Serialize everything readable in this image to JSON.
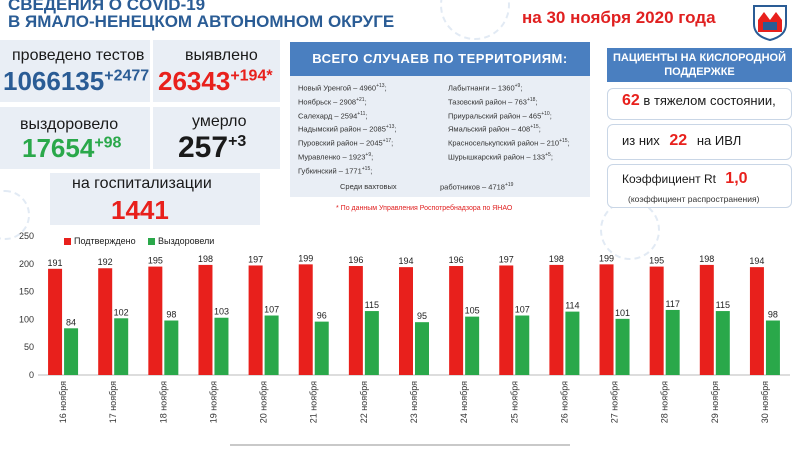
{
  "header": {
    "title_line1": "СВЕДЕНИЯ О COVID-19",
    "title_line2": "В ЯМАЛО-НЕНЕЦКОМ АВТОНОМНОМ ОКРУГЕ",
    "date": "на 30 ноября 2020 года"
  },
  "stats": {
    "tests_label": "проведено тестов",
    "tests_value": "1066135",
    "tests_delta": "+2477",
    "detected_label": "выявлено",
    "detected_value": "26343",
    "detected_delta": "+194*",
    "recovered_label": "выздоровело",
    "recovered_value": "17654",
    "recovered_delta": "+98",
    "died_label": "умерло",
    "died_value": "257",
    "died_delta": "+3",
    "hospital_label": "на госпитализации",
    "hospital_value": "1441"
  },
  "territories": {
    "title": "ВСЕГО СЛУЧАЕВ ПО ТЕРРИТОРИЯМ:",
    "left": [
      {
        "name": "Новый Уренгой – 4960",
        "delta": "+13"
      },
      {
        "name": "Ноябрьск – 2908",
        "delta": "+21"
      },
      {
        "name": "Салехард – 2594",
        "delta": "+11"
      },
      {
        "name": "Надымский район – 2085",
        "delta": "+13"
      },
      {
        "name": "Пуровский район – 2045",
        "delta": "+17"
      },
      {
        "name": "Муравленко – 1923",
        "delta": "+9"
      },
      {
        "name": "Губкинский – 1771",
        "delta": "+15"
      }
    ],
    "right": [
      {
        "name": "Лабытнанги – 1360",
        "delta": "+9"
      },
      {
        "name": "Тазовский район – 763",
        "delta": "+18"
      },
      {
        "name": "Приуральский район – 465",
        "delta": "+10"
      },
      {
        "name": "Ямальский район – 408",
        "delta": "+15"
      },
      {
        "name": "Красноселькупский район – 210",
        "delta": "+15"
      },
      {
        "name": "Шурышкарский район – 133",
        "delta": "+5"
      }
    ],
    "shift_label": "Среди вахтовых",
    "shift_value": "работников – 4718",
    "shift_delta": "+19",
    "note": "* По данным Управления Роспотребнадзора по ЯНАО"
  },
  "oxygen": {
    "title": "ПАЦИЕНТЫ НА КИСЛОРОДНОЙ ПОДДЕРЖКЕ",
    "severe_value": "62",
    "severe_label": "в тяжелом состоянии,",
    "ivl_prefix": "из них",
    "ivl_value": "22",
    "ivl_label": "на ИВЛ",
    "rt_label": "Коэффициент Rt",
    "rt_value": "1,0",
    "rt_sub": "(коэффициент распространения)"
  },
  "colors": {
    "red": "#e8201c",
    "green": "#2aa84a",
    "blue": "#4a7fc0",
    "title_blue": "#2a5c95"
  },
  "chart_data": {
    "type": "bar",
    "categories": [
      "16 ноября",
      "17 ноября",
      "18 ноября",
      "19 ноября",
      "20 ноября",
      "21 ноября",
      "22 ноября",
      "23 ноября",
      "24 ноября",
      "25 ноября",
      "26 ноября",
      "27 ноября",
      "28 ноября",
      "29 ноября",
      "30 ноября"
    ],
    "series": [
      {
        "name": "Подтверждено",
        "color": "#e8201c",
        "values": [
          191,
          192,
          195,
          198,
          197,
          199,
          196,
          194,
          196,
          197,
          198,
          199,
          195,
          198,
          194
        ]
      },
      {
        "name": "Выздоровели",
        "color": "#2aa84a",
        "values": [
          84,
          102,
          98,
          103,
          107,
          96,
          115,
          95,
          105,
          107,
          114,
          101,
          117,
          115,
          98
        ]
      }
    ],
    "yticks": [
      0,
      50,
      100,
      150,
      200,
      250
    ],
    "ylim": [
      0,
      250
    ],
    "grid": false,
    "legend": "top-left"
  }
}
